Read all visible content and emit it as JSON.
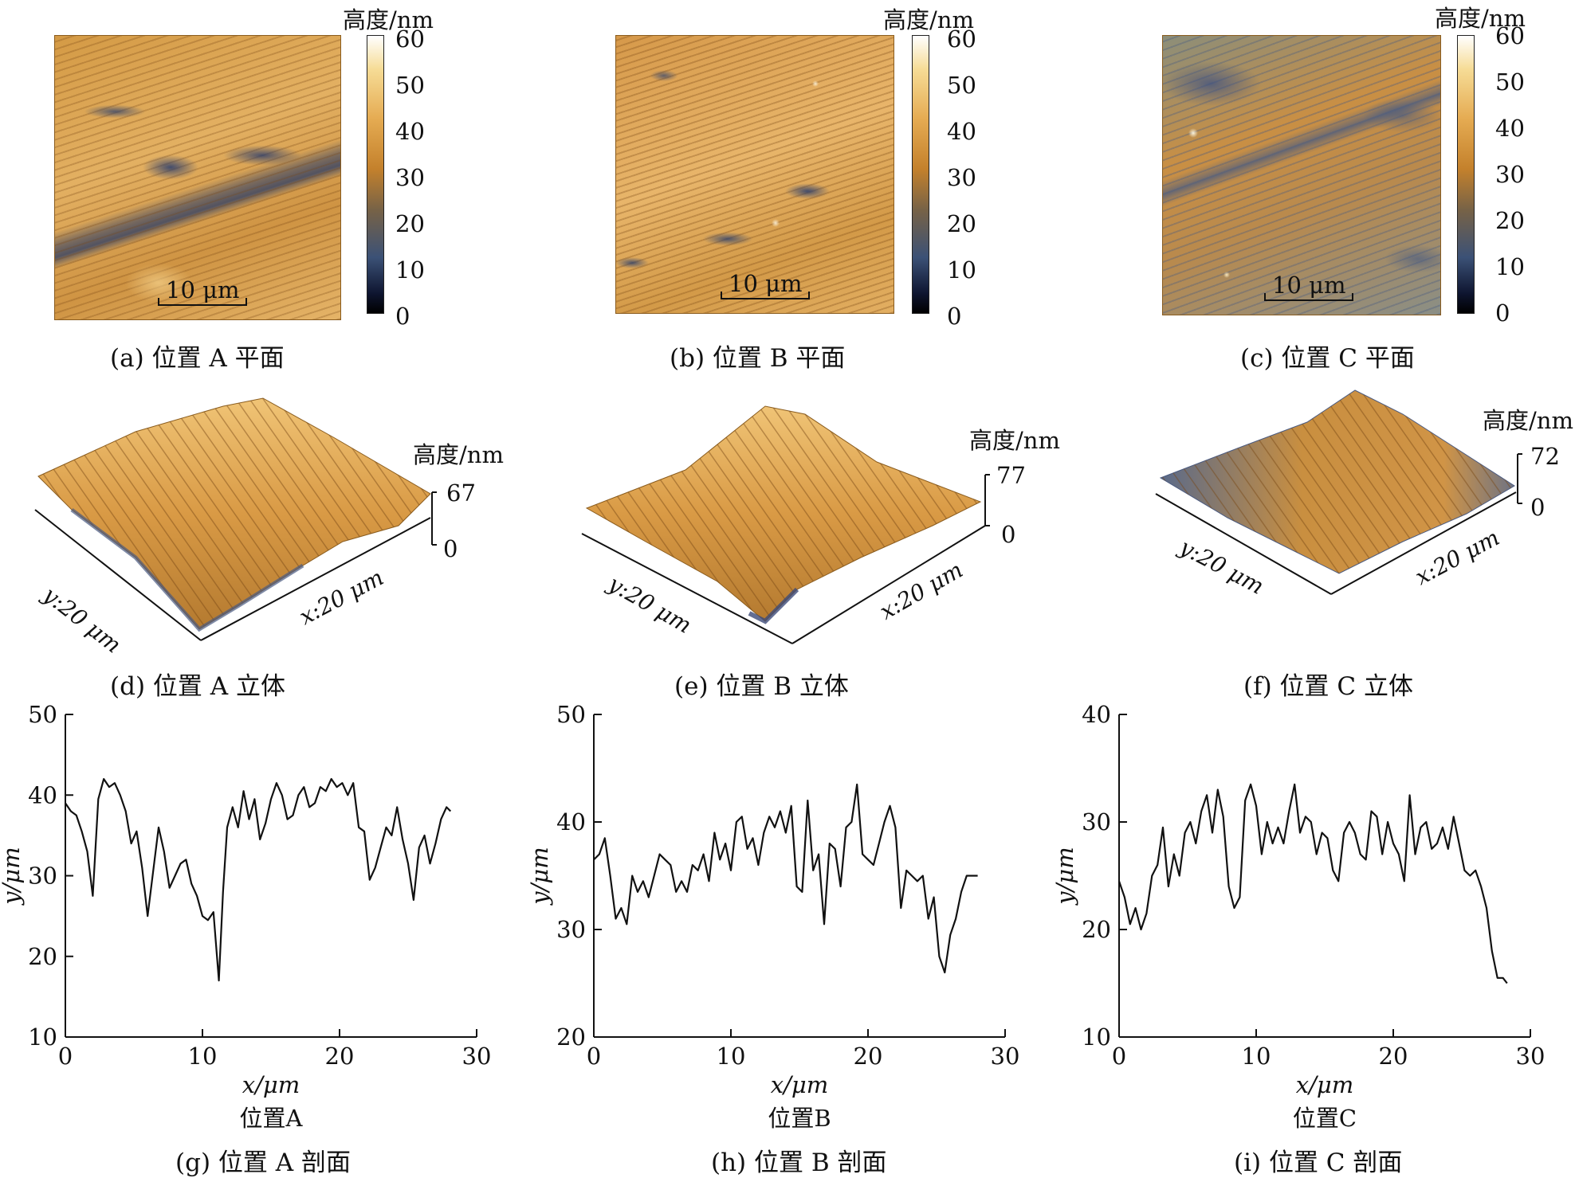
{
  "colorbar": {
    "title": "高度/nm",
    "ticks": [
      "60",
      "50",
      "40",
      "30",
      "20",
      "10",
      "0"
    ]
  },
  "scalebar_label": "10 μm",
  "captions": {
    "a": "(a) 位置 A 平面",
    "b": "(b) 位置 B 平面",
    "c": "(c) 位置 C 平面",
    "d": "(d) 位置 A 立体",
    "e": "(e) 位置 B 立体",
    "f": "(f) 位置 C 立体",
    "g": "(g) 位置 A 剖面",
    "h": "(h) 位置 B 剖面",
    "i": "(i) 位置 C 剖面"
  },
  "surface3d": {
    "height_title": "高度/nm",
    "y_axis_label": "y:20 μm",
    "x_axis_label": "x:20 μm",
    "A": {
      "max": "67",
      "min": "0"
    },
    "B": {
      "max": "77",
      "min": "0"
    },
    "C": {
      "max": "72",
      "min": "0"
    }
  },
  "chart_data": [
    {
      "type": "line",
      "title": "位置A",
      "xlabel": "x/μm",
      "ylabel": "y/μm",
      "xlim": [
        0,
        30
      ],
      "ylim": [
        10,
        50
      ],
      "xticks": [
        0,
        10,
        20,
        30
      ],
      "yticks": [
        10,
        20,
        30,
        40,
        50
      ],
      "x": [
        0,
        0.4,
        0.8,
        1.2,
        1.6,
        2.0,
        2.4,
        2.8,
        3.2,
        3.6,
        4.0,
        4.4,
        4.8,
        5.2,
        5.6,
        6.0,
        6.4,
        6.8,
        7.2,
        7.6,
        8.0,
        8.4,
        8.8,
        9.2,
        9.6,
        10.0,
        10.4,
        10.8,
        11.2,
        11.5,
        11.8,
        12.2,
        12.6,
        13.0,
        13.4,
        13.8,
        14.2,
        14.6,
        15.0,
        15.4,
        15.8,
        16.2,
        16.6,
        17.0,
        17.4,
        17.8,
        18.2,
        18.6,
        19.0,
        19.4,
        19.8,
        20.2,
        20.6,
        21.0,
        21.4,
        21.8,
        22.2,
        22.6,
        23.0,
        23.4,
        23.8,
        24.2,
        24.6,
        25.0,
        25.4,
        25.8,
        26.2,
        26.6,
        27.0,
        27.4,
        27.8,
        28.1
      ],
      "y": [
        39,
        38,
        37.5,
        35.5,
        33,
        27.5,
        39.5,
        42,
        41,
        41.5,
        40,
        38,
        34,
        35.5,
        31,
        25,
        30.5,
        36,
        33,
        28.5,
        30,
        31.5,
        32,
        29,
        27.5,
        25,
        24.5,
        25.5,
        17,
        28,
        36,
        38.5,
        36,
        40.5,
        37,
        39.5,
        34.5,
        36.5,
        39.5,
        41.5,
        40,
        37,
        37.5,
        40,
        41,
        38.5,
        39,
        41,
        40.5,
        42,
        41,
        41.5,
        40,
        41.5,
        36,
        35.5,
        29.5,
        31,
        33.5,
        36,
        35,
        38.5,
        34.5,
        31.5,
        27,
        33.5,
        35,
        31.5,
        34,
        37,
        38.5,
        38
      ]
    },
    {
      "type": "line",
      "title": "位置B",
      "xlabel": "x/μm",
      "ylabel": "y/μm",
      "xlim": [
        0,
        30
      ],
      "ylim": [
        20,
        50
      ],
      "xticks": [
        0,
        10,
        20,
        30
      ],
      "yticks": [
        20,
        30,
        40,
        50
      ],
      "x": [
        0,
        0.4,
        0.8,
        1.2,
        1.6,
        2.0,
        2.4,
        2.8,
        3.2,
        3.6,
        4.0,
        4.4,
        4.8,
        5.2,
        5.6,
        6.0,
        6.4,
        6.8,
        7.2,
        7.6,
        8.0,
        8.4,
        8.8,
        9.2,
        9.6,
        10.0,
        10.4,
        10.8,
        11.2,
        11.6,
        12.0,
        12.4,
        12.8,
        13.2,
        13.6,
        14.0,
        14.4,
        14.8,
        15.2,
        15.6,
        16.0,
        16.4,
        16.8,
        17.2,
        17.6,
        18.0,
        18.4,
        18.8,
        19.2,
        19.6,
        20.0,
        20.4,
        20.8,
        21.2,
        21.6,
        22.0,
        22.4,
        22.8,
        23.2,
        23.6,
        24.0,
        24.4,
        24.8,
        25.2,
        25.6,
        26.0,
        26.4,
        26.8,
        27.2,
        27.6,
        28.0
      ],
      "y": [
        36.5,
        37,
        38.5,
        35,
        31,
        32,
        30.5,
        35,
        33.5,
        34.5,
        33,
        35,
        37,
        36.5,
        36,
        33.5,
        34.5,
        33.5,
        36,
        35.5,
        37,
        34.5,
        39,
        36.5,
        38,
        35.5,
        40,
        40.5,
        37.5,
        38.5,
        36,
        39,
        40.5,
        39.5,
        41,
        39,
        41.5,
        34,
        33.5,
        42,
        35.5,
        37,
        30.5,
        38,
        37.5,
        34,
        39.5,
        40,
        43.5,
        37,
        36.5,
        36,
        38,
        40,
        41.5,
        39.5,
        32,
        35.5,
        35,
        34.5,
        35,
        31,
        33,
        27.5,
        26,
        29.5,
        31,
        33.5,
        35,
        35,
        35
      ]
    },
    {
      "type": "line",
      "title": "位置C",
      "xlabel": "x/μm",
      "ylabel": "y/μm",
      "xlim": [
        0,
        30
      ],
      "ylim": [
        10,
        40
      ],
      "xticks": [
        0,
        10,
        20,
        30
      ],
      "yticks": [
        10,
        20,
        30,
        40
      ],
      "x": [
        0,
        0.4,
        0.8,
        1.2,
        1.6,
        2.0,
        2.4,
        2.8,
        3.2,
        3.6,
        4.0,
        4.4,
        4.8,
        5.2,
        5.6,
        6.0,
        6.4,
        6.8,
        7.2,
        7.6,
        8.0,
        8.4,
        8.8,
        9.2,
        9.6,
        10.0,
        10.4,
        10.8,
        11.2,
        11.6,
        12.0,
        12.4,
        12.8,
        13.2,
        13.6,
        14.0,
        14.4,
        14.8,
        15.2,
        15.6,
        16.0,
        16.4,
        16.8,
        17.2,
        17.6,
        18.0,
        18.4,
        18.8,
        19.2,
        19.6,
        20.0,
        20.4,
        20.8,
        21.2,
        21.6,
        22.0,
        22.4,
        22.8,
        23.2,
        23.6,
        24.0,
        24.4,
        24.8,
        25.2,
        25.6,
        26.0,
        26.4,
        26.8,
        27.2,
        27.6,
        28.0,
        28.3
      ],
      "y": [
        24.5,
        23,
        20.5,
        22,
        20,
        21.5,
        25,
        26,
        29.5,
        24,
        27,
        25,
        29,
        30,
        28,
        31,
        32.5,
        29,
        33,
        30.5,
        24,
        22,
        23,
        32,
        33.5,
        31.5,
        27,
        30,
        28,
        29.5,
        28,
        31,
        33.5,
        29,
        30.5,
        30,
        27,
        29,
        28.5,
        25.5,
        24.5,
        29,
        30,
        29,
        27,
        26.5,
        31,
        30.5,
        27,
        30,
        28,
        27,
        24.5,
        32.5,
        27,
        29.5,
        30,
        27.5,
        28,
        29.5,
        27.5,
        30.5,
        28,
        25.5,
        25,
        25.5,
        24,
        22,
        18,
        15.5,
        15.5,
        15
      ]
    }
  ]
}
